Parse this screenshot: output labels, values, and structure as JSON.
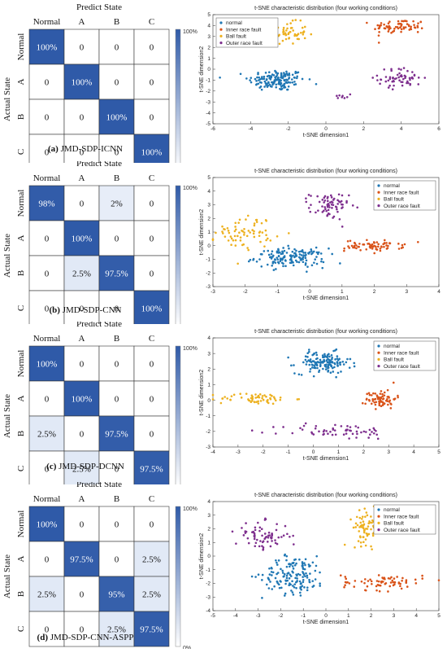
{
  "colors": {
    "normal": "#1f77b4",
    "inner": "#d95319",
    "ball": "#edb120",
    "outer": "#7e2f8e",
    "cm_high": "#2f5aa8",
    "cm_low": "#ffffff",
    "text_dark": "#111111"
  },
  "cm_common": {
    "predict_label": "Predict State",
    "actual_label": "Actual State",
    "classes": [
      "Normal",
      "A",
      "B",
      "C"
    ],
    "colorbar_top": "100%",
    "colorbar_bottom": "0%"
  },
  "tsne_common": {
    "legend": [
      "normal",
      "Inner race fault",
      "Ball fault",
      "Outer race fault"
    ]
  },
  "panels": [
    {
      "caption_prefix": "(a)",
      "caption_text": "JMD-SDP-ICNN",
      "matrix": [
        [
          "100%",
          "0",
          "0",
          "0"
        ],
        [
          "0",
          "100%",
          "0",
          "0"
        ],
        [
          "0",
          "0",
          "100%",
          "0"
        ],
        [
          "0",
          "0",
          "0",
          "100%"
        ]
      ],
      "matrix_values": [
        [
          1,
          0,
          0,
          0
        ],
        [
          0,
          1,
          0,
          0
        ],
        [
          0,
          0,
          1,
          0
        ],
        [
          0,
          0,
          0,
          1
        ]
      ]
    },
    {
      "caption_prefix": "(b)",
      "caption_text": "JMD-SDP-CNN",
      "matrix": [
        [
          "98%",
          "0",
          "2%",
          "0"
        ],
        [
          "0",
          "100%",
          "0",
          "0"
        ],
        [
          "0",
          "2.5%",
          "97.5%",
          "0"
        ],
        [
          "0",
          "0",
          "0",
          "100%"
        ]
      ],
      "matrix_values": [
        [
          0.98,
          0,
          0.02,
          0
        ],
        [
          0,
          1,
          0,
          0
        ],
        [
          0,
          0.025,
          0.975,
          0
        ],
        [
          0,
          0,
          0,
          1
        ]
      ]
    },
    {
      "caption_prefix": "(c)",
      "caption_text": "JMD-SDP-DCNN",
      "matrix": [
        [
          "100%",
          "0",
          "0",
          "0"
        ],
        [
          "0",
          "100%",
          "0",
          "0"
        ],
        [
          "2.5%",
          "0",
          "97.5%",
          "0"
        ],
        [
          "0",
          "2.5%",
          "0",
          "97.5%"
        ]
      ],
      "matrix_values": [
        [
          1,
          0,
          0,
          0
        ],
        [
          0,
          1,
          0,
          0
        ],
        [
          0.025,
          0,
          0.975,
          0
        ],
        [
          0,
          0.025,
          0,
          0.975
        ]
      ]
    },
    {
      "caption_prefix": "(d)",
      "caption_text": "JMD-SDP-CNN-ASPP",
      "matrix": [
        [
          "100%",
          "0",
          "0",
          "0"
        ],
        [
          "0",
          "97.5%",
          "0",
          "2.5%"
        ],
        [
          "2.5%",
          "0",
          "95%",
          "2.5%"
        ],
        [
          "0",
          "0",
          "2.5%",
          "97.5%"
        ]
      ],
      "matrix_values": [
        [
          1,
          0,
          0,
          0
        ],
        [
          0,
          0.975,
          0,
          0.025
        ],
        [
          0.025,
          0,
          0.95,
          0.025
        ],
        [
          0,
          0,
          0.025,
          0.975
        ]
      ]
    }
  ],
  "chart_data": [
    {
      "type": "scatter",
      "title": "t-SNE characteristic distribution (four working conditions)",
      "xlabel": "t-SNE dimension1",
      "ylabel": "t-SNE dimension2",
      "xlim": [
        -6,
        6
      ],
      "ylim": [
        -5,
        5
      ],
      "xticks": [
        -6,
        -4,
        -2,
        0,
        2,
        4,
        6
      ],
      "yticks": [
        -5,
        -4,
        -3,
        -2,
        -1,
        0,
        1,
        2,
        3,
        4,
        5
      ],
      "legend_position": "top-left",
      "series": [
        {
          "name": "normal",
          "clusters": [
            {
              "cx": -2.6,
              "cy": -1.0,
              "sx": 0.75,
              "sy": 0.5,
              "n": 150
            }
          ]
        },
        {
          "name": "Inner race fault",
          "clusters": [
            {
              "cx": 3.9,
              "cy": 3.9,
              "sx": 0.7,
              "sy": 0.35,
              "n": 70
            }
          ]
        },
        {
          "name": "Ball fault",
          "clusters": [
            {
              "cx": -2.1,
              "cy": 3.3,
              "sx": 0.55,
              "sy": 0.5,
              "n": 60
            }
          ]
        },
        {
          "name": "Outer race fault",
          "clusters": [
            {
              "cx": 4.0,
              "cy": -0.8,
              "sx": 0.6,
              "sy": 0.45,
              "n": 60
            },
            {
              "cx": 0.9,
              "cy": -2.5,
              "sx": 0.2,
              "sy": 0.1,
              "n": 8
            }
          ]
        }
      ]
    },
    {
      "type": "scatter",
      "title": "t-SNE characteristic distribution (four working conditions)",
      "xlabel": "t-SNE dimension1",
      "ylabel": "t-SNE dimension2",
      "xlim": [
        -3,
        4
      ],
      "ylim": [
        -3,
        5
      ],
      "xticks": [
        -3,
        -2,
        -1,
        0,
        1,
        2,
        3,
        4
      ],
      "yticks": [
        -3,
        -2,
        -1,
        0,
        1,
        2,
        3,
        4,
        5
      ],
      "legend_position": "top-right",
      "series": [
        {
          "name": "normal",
          "clusters": [
            {
              "cx": -0.6,
              "cy": -0.9,
              "sx": 0.55,
              "sy": 0.35,
              "n": 150
            }
          ]
        },
        {
          "name": "Inner race fault",
          "clusters": [
            {
              "cx": 2.0,
              "cy": 0.0,
              "sx": 0.45,
              "sy": 0.2,
              "n": 70
            }
          ]
        },
        {
          "name": "Ball fault",
          "clusters": [
            {
              "cx": -2.0,
              "cy": 1.0,
              "sx": 0.45,
              "sy": 0.6,
              "n": 70
            }
          ]
        },
        {
          "name": "Outer race fault",
          "clusters": [
            {
              "cx": 0.6,
              "cy": 2.9,
              "sx": 0.3,
              "sy": 0.5,
              "n": 70
            }
          ]
        }
      ]
    },
    {
      "type": "scatter",
      "title": "t-SNE characteristic distribution (four working conditions)",
      "xlabel": "t-SNE dimension1",
      "ylabel": "t-SNE dimension2",
      "xlim": [
        -4,
        5
      ],
      "ylim": [
        -3,
        4
      ],
      "xticks": [
        -4,
        -3,
        -2,
        -1,
        0,
        1,
        2,
        3,
        4,
        5
      ],
      "yticks": [
        -3,
        -2,
        -1,
        0,
        1,
        2,
        3,
        4
      ],
      "legend_position": "top-right",
      "series": [
        {
          "name": "normal",
          "clusters": [
            {
              "cx": 0.4,
              "cy": 2.4,
              "sx": 0.55,
              "sy": 0.35,
              "n": 140
            }
          ]
        },
        {
          "name": "Inner race fault",
          "clusters": [
            {
              "cx": 2.7,
              "cy": 0.1,
              "sx": 0.3,
              "sy": 0.3,
              "n": 70
            }
          ]
        },
        {
          "name": "Ball fault",
          "clusters": [
            {
              "cx": -2.3,
              "cy": 0.1,
              "sx": 0.75,
              "sy": 0.18,
              "n": 60
            }
          ]
        },
        {
          "name": "Outer race fault",
          "clusters": [
            {
              "cx": 1.0,
              "cy": -2.0,
              "sx": 1.1,
              "sy": 0.25,
              "n": 60
            }
          ]
        }
      ]
    },
    {
      "type": "scatter",
      "title": "t-SNE characteristic distribution (four working conditions)",
      "xlabel": "t-SNE dimension1",
      "ylabel": "t-SNE dimension2",
      "xlim": [
        -5,
        5
      ],
      "ylim": [
        -4,
        4
      ],
      "xticks": [
        -5,
        -4,
        -3,
        -2,
        -1,
        0,
        1,
        2,
        3,
        4,
        5
      ],
      "yticks": [
        -4,
        -3,
        -2,
        -1,
        0,
        1,
        2,
        3,
        4
      ],
      "legend_position": "top-right",
      "series": [
        {
          "name": "normal",
          "clusters": [
            {
              "cx": -1.4,
              "cy": -1.4,
              "sx": 0.7,
              "sy": 0.7,
              "n": 150
            }
          ]
        },
        {
          "name": "Inner race fault",
          "clusters": [
            {
              "cx": 2.5,
              "cy": -1.9,
              "sx": 0.9,
              "sy": 0.3,
              "n": 70
            }
          ]
        },
        {
          "name": "Ball fault",
          "clusters": [
            {
              "cx": 1.8,
              "cy": 2.1,
              "sx": 0.3,
              "sy": 0.6,
              "n": 70
            }
          ]
        },
        {
          "name": "Outer race fault",
          "clusters": [
            {
              "cx": -2.8,
              "cy": 1.5,
              "sx": 0.6,
              "sy": 0.5,
              "n": 70
            }
          ]
        }
      ]
    }
  ]
}
